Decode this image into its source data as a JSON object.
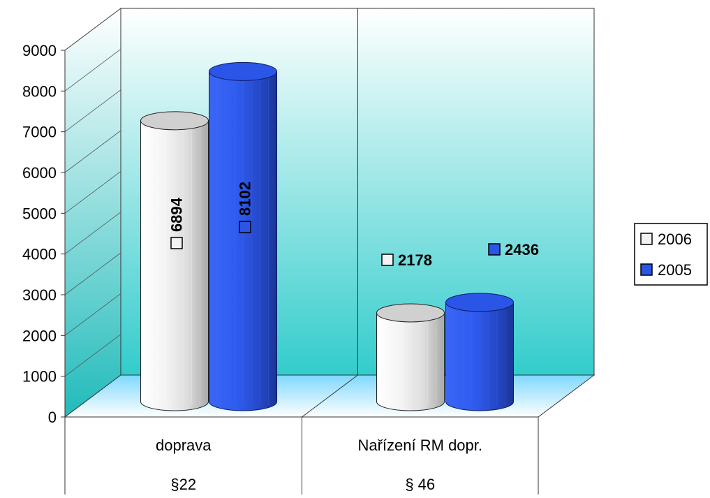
{
  "chart_data": {
    "type": "bar",
    "categories": [
      "doprava",
      "Nařízení RM dopr."
    ],
    "category_sublabels": [
      "§22",
      "§ 46"
    ],
    "series": [
      {
        "name": "2006",
        "values": [
          6894,
          2178
        ],
        "color": "#f2f2f2"
      },
      {
        "name": "2005",
        "values": [
          8102,
          2436
        ],
        "color": "#2a55e6"
      }
    ],
    "yticks": [
      "0",
      "1000",
      "2000",
      "3000",
      "4000",
      "5000",
      "6000",
      "7000",
      "8000",
      "9000"
    ],
    "ylim": [
      0,
      9000
    ],
    "title": "",
    "xlabel": "",
    "ylabel": "",
    "legend_position": "right",
    "data_labels": [
      "6894",
      "8102",
      "2178",
      "2436"
    ],
    "grid": true,
    "style": "3d-cylinder",
    "wall_gradient": [
      "#ffffff",
      "#33cccc"
    ]
  }
}
